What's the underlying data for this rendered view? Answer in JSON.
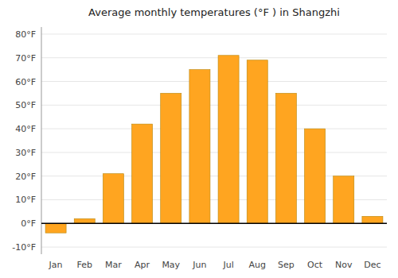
{
  "chart_data": {
    "type": "bar",
    "title": "Average monthly temperatures (°F ) in Shangzhi",
    "categories": [
      "Jan",
      "Feb",
      "Mar",
      "Apr",
      "May",
      "Jun",
      "Jul",
      "Aug",
      "Sep",
      "Oct",
      "Nov",
      "Dec"
    ],
    "values": [
      -4,
      2,
      21,
      42,
      55,
      65,
      71,
      69,
      55,
      40,
      20,
      3
    ],
    "color": "#FFA520",
    "ylim": [
      -13,
      83
    ],
    "yticks": [
      {
        "value": -10,
        "label": "-10°F"
      },
      {
        "value": 0,
        "label": "0°F"
      },
      {
        "value": 10,
        "label": "10°F"
      },
      {
        "value": 20,
        "label": "20°F"
      },
      {
        "value": 30,
        "label": "30°F"
      },
      {
        "value": 40,
        "label": "40°F"
      },
      {
        "value": 50,
        "label": "50°F"
      },
      {
        "value": 60,
        "label": "60°F"
      },
      {
        "value": 70,
        "label": "70°F"
      },
      {
        "value": 80,
        "label": "80°F"
      }
    ],
    "grid": true
  }
}
